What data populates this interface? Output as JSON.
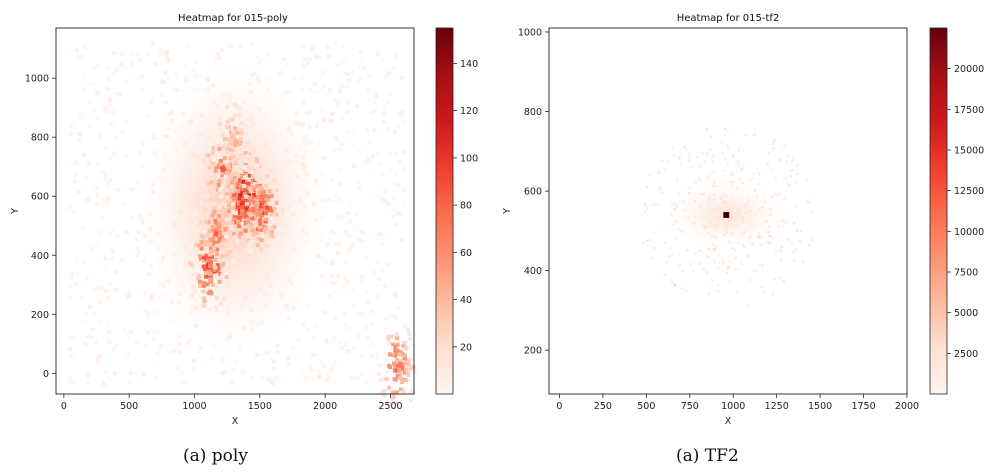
{
  "chart_data": [
    {
      "type": "heatmap",
      "title": "Heatmap for 015-poly",
      "xlabel": "X",
      "ylabel": "Y",
      "caption": "(a) poly",
      "xlim": [
        -60,
        2680
      ],
      "ylim": [
        -70,
        1170
      ],
      "xticks": [
        0,
        500,
        1000,
        1500,
        2000,
        2500
      ],
      "yticks": [
        0,
        200,
        400,
        600,
        800,
        1000
      ],
      "colorbar": {
        "min": 0,
        "max": 155,
        "ticks": [
          20,
          40,
          60,
          80,
          100,
          120,
          140
        ],
        "colormap": "Reds"
      },
      "hotspots": [
        {
          "x": 1380,
          "y": 620,
          "value": 155
        },
        {
          "x": 1350,
          "y": 570,
          "value": 135
        },
        {
          "x": 1100,
          "y": 370,
          "value": 125
        },
        {
          "x": 1500,
          "y": 560,
          "value": 120
        },
        {
          "x": 1200,
          "y": 700,
          "value": 90
        },
        {
          "x": 1150,
          "y": 480,
          "value": 85
        },
        {
          "x": 2540,
          "y": 30,
          "value": 95
        },
        {
          "x": 1280,
          "y": 800,
          "value": 60
        }
      ]
    },
    {
      "type": "heatmap",
      "title": "Heatmap for 015-tf2",
      "xlabel": "X",
      "ylabel": "Y",
      "caption": "(a) TF2",
      "xlim": [
        -60,
        2000
      ],
      "ylim": [
        90,
        1010
      ],
      "xticks": [
        0,
        250,
        500,
        750,
        1000,
        1250,
        1500,
        1750,
        2000
      ],
      "yticks": [
        200,
        400,
        600,
        800,
        1000
      ],
      "colorbar": {
        "min": 0,
        "max": 22500,
        "ticks": [
          2500,
          5000,
          7500,
          10000,
          12500,
          15000,
          17500,
          20000
        ],
        "colormap": "Reds"
      },
      "hotspots": [
        {
          "x": 960,
          "y": 540,
          "value": 22000
        },
        {
          "x": 960,
          "y": 540,
          "value": 3000
        }
      ]
    }
  ]
}
